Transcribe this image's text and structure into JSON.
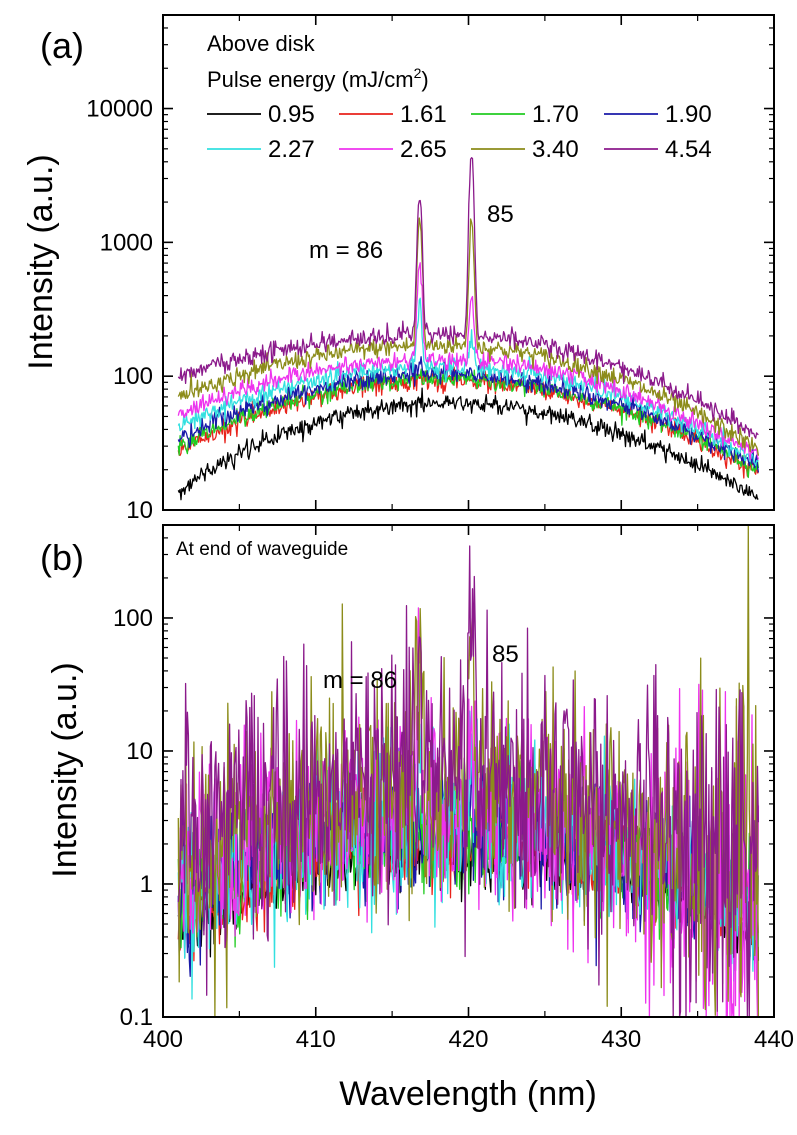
{
  "chart_data": [
    {
      "type": "line",
      "panel_label": "(a)",
      "title": "Above disk",
      "legend_title": "Pulse energy (mJ/cm",
      "legend_title_sup": "2",
      "legend_title_end": ")",
      "xlabel": "Wavelength (nm)",
      "ylabel": "Intensity (a.u.)",
      "xlim": [
        400,
        440
      ],
      "ylim": [
        10,
        50000
      ],
      "yscale": "log",
      "xticks": [
        "400",
        "410",
        "420",
        "430",
        "440"
      ],
      "yticks": [
        "10",
        "100",
        "1000",
        "10000"
      ],
      "peak_labels": [
        "m = 86",
        "85"
      ],
      "peaks_nm": [
        416.8,
        420.2
      ],
      "series": [
        {
          "name": "0.95",
          "color": "#000000",
          "baseline_at_401": 14,
          "baseline_max": 63,
          "baseline_at_439": 12,
          "peak1": 63,
          "peak2": 63
        },
        {
          "name": "1.61",
          "color": "#e8231b",
          "baseline_at_401": 28,
          "baseline_max": 92,
          "baseline_at_439": 19,
          "peak1": 96,
          "peak2": 94
        },
        {
          "name": "1.70",
          "color": "#22cc22",
          "baseline_at_401": 30,
          "baseline_max": 95,
          "baseline_at_439": 20,
          "peak1": 100,
          "peak2": 98
        },
        {
          "name": "1.90",
          "color": "#1a1aa8",
          "baseline_at_401": 34,
          "baseline_max": 103,
          "baseline_at_439": 21,
          "peak1": 130,
          "peak2": 112
        },
        {
          "name": "2.27",
          "color": "#33e0e0",
          "baseline_at_401": 42,
          "baseline_max": 118,
          "baseline_at_439": 23,
          "peak1": 350,
          "peak2": 190
        },
        {
          "name": "2.65",
          "color": "#ee33ee",
          "baseline_at_401": 52,
          "baseline_max": 135,
          "baseline_at_439": 25,
          "peak1": 700,
          "peak2": 390
        },
        {
          "name": "3.40",
          "color": "#8c8c1a",
          "baseline_at_401": 70,
          "baseline_max": 170,
          "baseline_at_439": 28,
          "peak1": 1500,
          "peak2": 1450
        },
        {
          "name": "4.54",
          "color": "#8b1a8b",
          "baseline_at_401": 100,
          "baseline_max": 205,
          "baseline_at_439": 36,
          "peak1": 2150,
          "peak2": 4300
        }
      ]
    },
    {
      "type": "line",
      "panel_label": "(b)",
      "title": "At end of waveguide",
      "xlabel": "Wavelength (nm)",
      "ylabel": "Intensity (a.u.)",
      "xlim": [
        400,
        440
      ],
      "ylim": [
        0.1,
        500
      ],
      "yscale": "log",
      "xticks": [
        "400",
        "410",
        "420",
        "430",
        "440"
      ],
      "yticks": [
        "0.1",
        "1",
        "10",
        "100"
      ],
      "peak_labels": [
        "m = 86",
        "85"
      ],
      "peaks_nm": [
        416.8,
        420.2
      ],
      "series": [
        {
          "name": "0.95",
          "color": "#000000",
          "baseline_at_401": 0.45,
          "baseline_max": 1.7,
          "baseline_at_439": 0.45,
          "peak1": 1.7,
          "peak2": 1.7
        },
        {
          "name": "1.61",
          "color": "#e8231b",
          "baseline_at_401": 0.6,
          "baseline_max": 2.2,
          "baseline_at_439": 0.55,
          "peak1": 2.3,
          "peak2": 2.3
        },
        {
          "name": "1.70",
          "color": "#22cc22",
          "baseline_at_401": 0.75,
          "baseline_max": 2.5,
          "baseline_at_439": 0.6,
          "peak1": 2.8,
          "peak2": 2.6
        },
        {
          "name": "1.90",
          "color": "#1a1aa8",
          "baseline_at_401": 0.85,
          "baseline_max": 2.8,
          "baseline_at_439": 0.6,
          "peak1": 3.5,
          "peak2": 3.2
        },
        {
          "name": "2.27",
          "color": "#33e0e0",
          "baseline_at_401": 0.9,
          "baseline_max": 3.0,
          "baseline_at_439": 0.6,
          "peak1": 6.0,
          "peak2": 6.5
        },
        {
          "name": "2.65",
          "color": "#ee33ee",
          "baseline_at_401": 1.2,
          "baseline_max": 3.5,
          "baseline_at_439": 0.7,
          "peak1": 30,
          "peak2": 18
        },
        {
          "name": "3.40",
          "color": "#8c8c1a",
          "baseline_at_401": 1.5,
          "baseline_max": 5.0,
          "baseline_at_439": 0.8,
          "peak1": 40,
          "peak2": 75
        },
        {
          "name": "4.54",
          "color": "#8b1a8b",
          "baseline_at_401": 2.0,
          "baseline_max": 7.0,
          "baseline_at_439": 0.9,
          "peak1": 55,
          "peak2": 195
        }
      ]
    }
  ]
}
